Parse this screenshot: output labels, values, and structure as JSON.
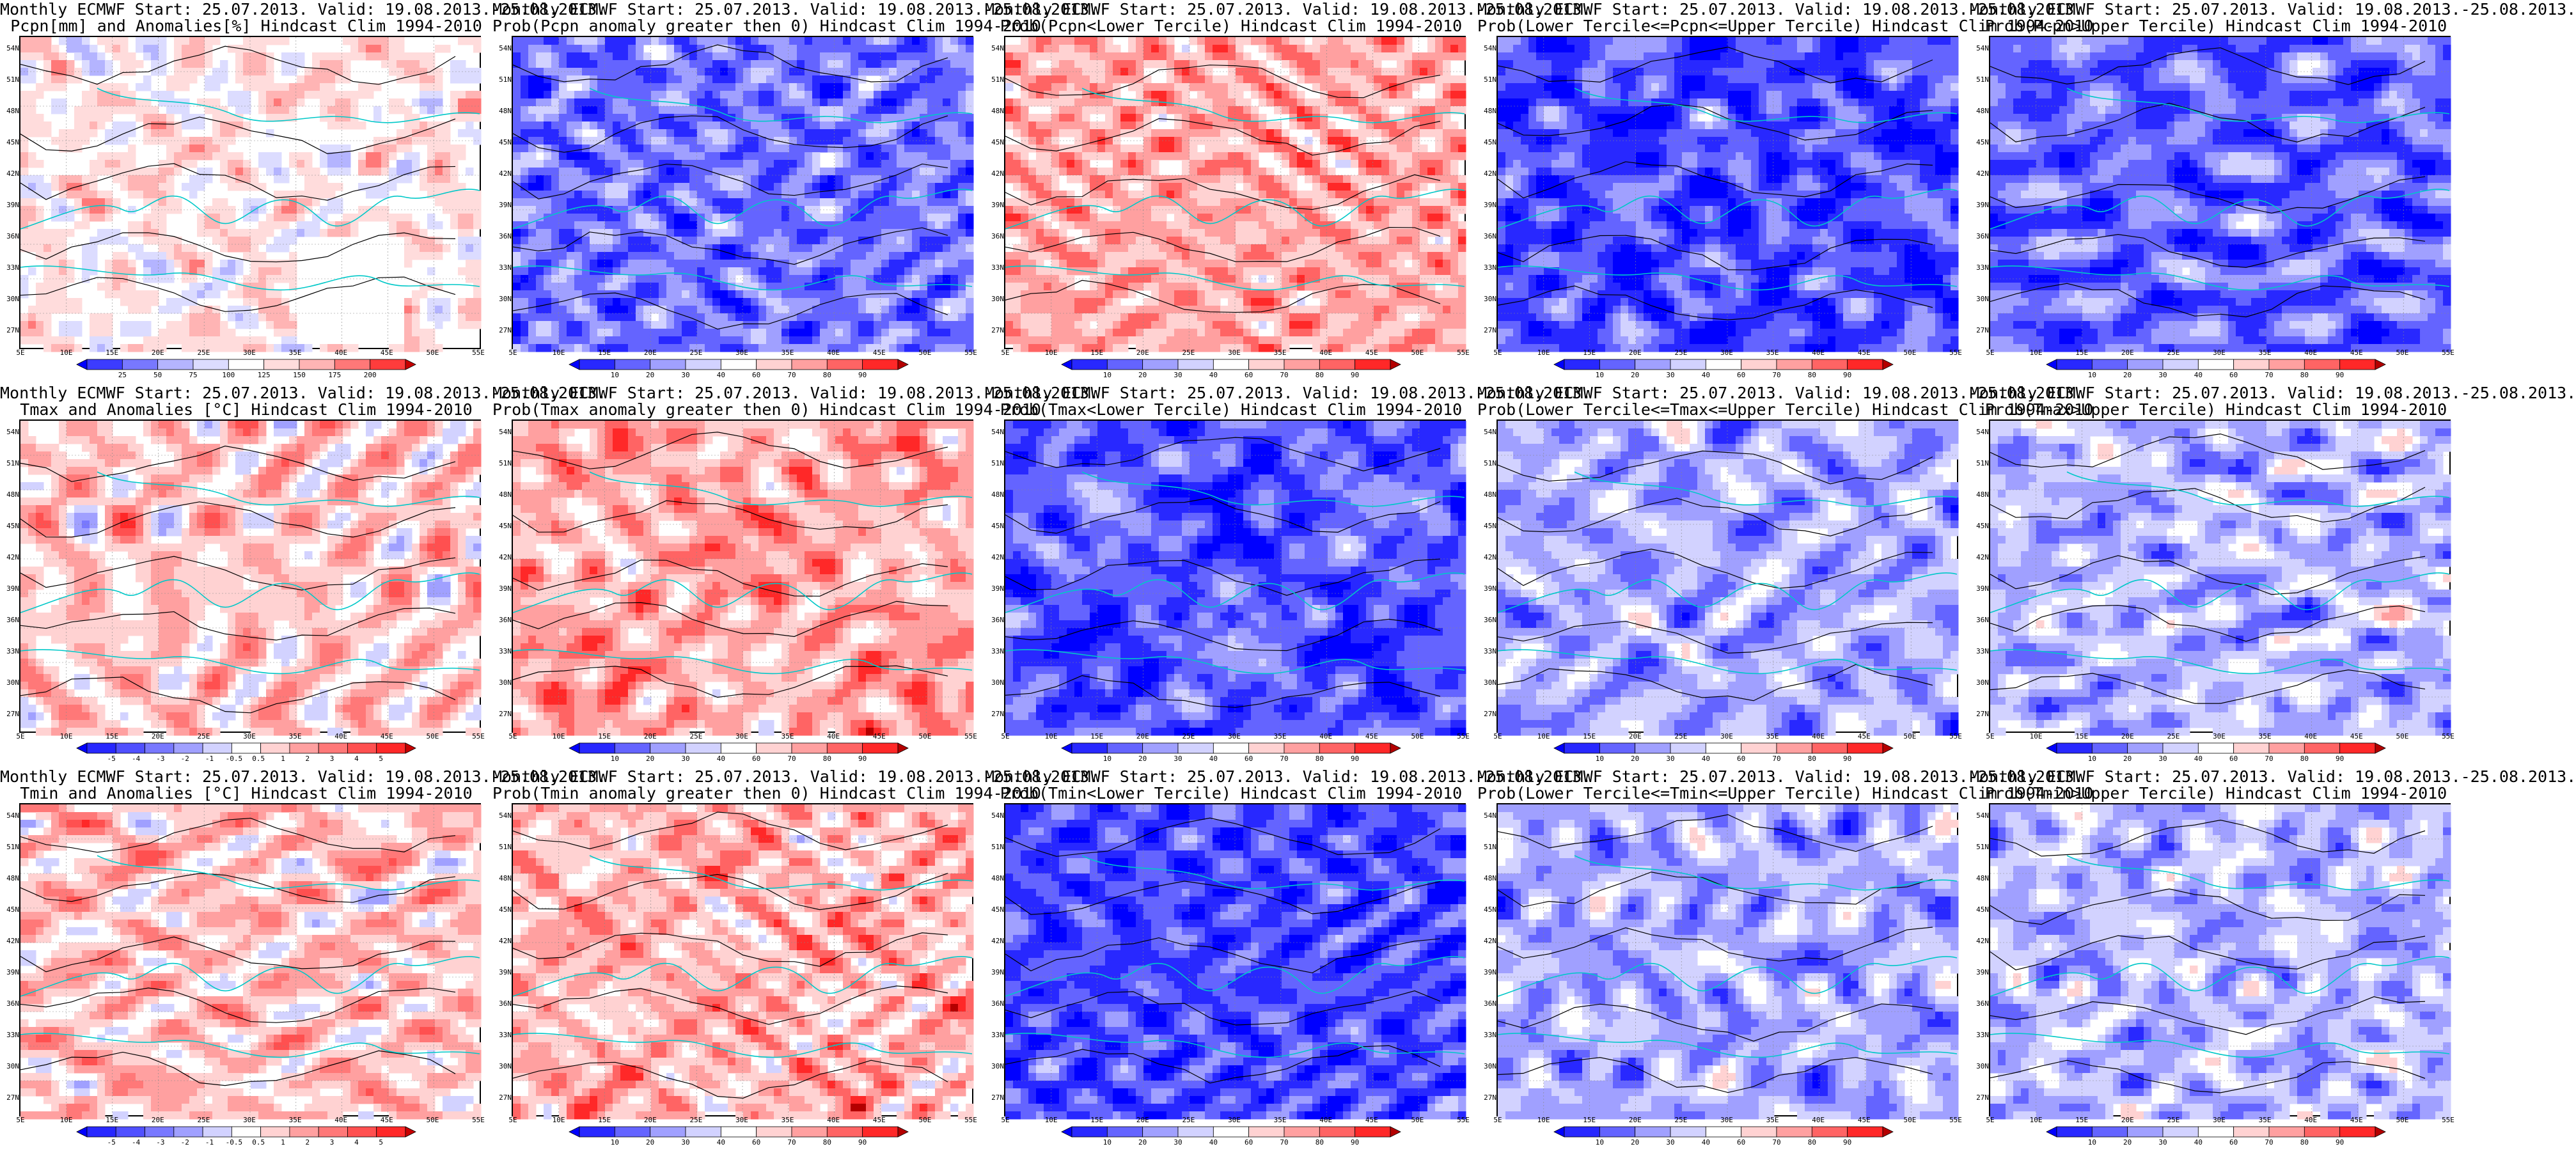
{
  "lat_labels": [
    "54N",
    "51N",
    "48N",
    "45N",
    "42N",
    "39N",
    "36N",
    "33N",
    "30N",
    "27N"
  ],
  "lon_labels": [
    "5E",
    "10E",
    "15E",
    "20E",
    "25E",
    "30E",
    "35E",
    "40E",
    "45E",
    "50E",
    "55E"
  ],
  "colorbars": {
    "precip": {
      "labels": [
        "25",
        "50",
        "75",
        "100",
        "125",
        "150",
        "175",
        "200"
      ],
      "colors": [
        "#0000ff",
        "#3c3cff",
        "#7878ff",
        "#b4b4ff",
        "#dcdcff",
        "#ffffff",
        "#ffdcdc",
        "#ffb4b4",
        "#ff7878",
        "#ff3c3c",
        "#c80000"
      ]
    },
    "prob": {
      "labels": [
        "10",
        "20",
        "30",
        "40",
        "60",
        "70",
        "80",
        "90"
      ],
      "colors": [
        "#0000ff",
        "#2828ff",
        "#6464ff",
        "#a0a0ff",
        "#d2d2ff",
        "#ffffff",
        "#ffd2d2",
        "#ffa0a0",
        "#ff6464",
        "#ff2828",
        "#b40000"
      ]
    },
    "temp": {
      "labels": [
        "-5",
        "-4",
        "-3",
        "-2",
        "-1",
        "-0.5",
        "0.5",
        "1",
        "2",
        "3",
        "4",
        "5"
      ],
      "colors": [
        "#0000ff",
        "#2828ff",
        "#5050ff",
        "#7878ff",
        "#a0a0ff",
        "#d2d2ff",
        "#ffffff",
        "#ffd2d2",
        "#ffa0a0",
        "#ff7878",
        "#ff5050",
        "#ff2828",
        "#c80000"
      ]
    }
  },
  "panels": [
    {
      "title1": "Monthly ECMWF Start: 25.07.2013. Valid: 19.08.2013.-25.08.2013.",
      "title2": "Pcpn[mm] and Anomalies[%] Hindcast Clim 1994-2010",
      "scale": "precip",
      "bias": 0.1,
      "seed": 11,
      "mask": true
    },
    {
      "title1": "Monthly ECMWF Start: 25.07.2013. Valid: 19.08.2013.-25.08.2013.",
      "title2": "Prob(Pcpn anomaly greater then 0) Hindcast Clim 1994-2010",
      "scale": "prob",
      "bias": -0.55,
      "seed": 23,
      "mask": false
    },
    {
      "title1": "Monthly ECMWF Start: 25.07.2013. Valid: 19.08.2013.-25.08.2013.",
      "title2": "Prob(Pcpn<Lower Tercile) Hindcast Clim 1994-2010",
      "scale": "prob",
      "bias": 0.35,
      "seed": 37,
      "mask": false
    },
    {
      "title1": "Monthly ECMWF Start: 25.07.2013. Valid: 19.08.2013.-25.08.2013.",
      "title2": "Prob(Lower Tercile<=Pcpn<=Upper Tercile) Hindcast Clim 1994-2010",
      "scale": "prob",
      "bias": -0.7,
      "seed": 41,
      "mask": false
    },
    {
      "title1": "Monthly ECMWF Start: 25.07.2013. Valid: 19.08.2013.-25.08.2013.",
      "title2": "Prob(Pcpn>Upper Tercile) Hindcast Clim 1994-2010",
      "scale": "prob",
      "bias": -0.6,
      "seed": 53,
      "mask": false
    },
    {
      "title1": "Monthly ECMWF Start: 25.07.2013. Valid: 19.08.2013.-25.08.2013.",
      "title2": "Tmax and Anomalies [°C] Hindcast Clim 1994-2010",
      "scale": "temp",
      "bias": 0.18,
      "seed": 61,
      "mask": false
    },
    {
      "title1": "Monthly ECMWF Start: 25.07.2013. Valid: 19.08.2013.-25.08.2013.",
      "title2": "Prob(Tmax anomaly greater then 0) Hindcast Clim 1994-2010",
      "scale": "prob",
      "bias": 0.35,
      "seed": 71,
      "mask": false
    },
    {
      "title1": "Monthly ECMWF Start: 25.07.2013. Valid: 19.08.2013.-25.08.2013.",
      "title2": "Prob(Tmax<Lower Tercile) Hindcast Clim 1994-2010",
      "scale": "prob",
      "bias": -0.65,
      "seed": 83,
      "mask": false
    },
    {
      "title1": "Monthly ECMWF Start: 25.07.2013. Valid: 19.08.2013.-25.08.2013.",
      "title2": "Prob(Lower Tercile<=Tmax<=Upper Tercile) Hindcast Clim 1994-2010",
      "scale": "prob",
      "bias": -0.35,
      "seed": 97,
      "mask": false
    },
    {
      "title1": "Monthly ECMWF Start: 25.07.2013. Valid: 19.08.2013.-25.08.2013.",
      "title2": "Prob(Tmax>Upper Tercile) Hindcast Clim 1994-2010",
      "scale": "prob",
      "bias": -0.3,
      "seed": 101,
      "mask": false
    },
    {
      "title1": "Monthly ECMWF Start: 25.07.2013. Valid: 19.08.2013.-25.08.2013.",
      "title2": "Tmin and Anomalies [°C] Hindcast Clim 1994-2010",
      "scale": "temp",
      "bias": 0.2,
      "seed": 113,
      "mask": false
    },
    {
      "title1": "Monthly ECMWF Start: 25.07.2013. Valid: 19.08.2013.-25.08.2013.",
      "title2": "Prob(Tmin anomaly greater then 0) Hindcast Clim 1994-2010",
      "scale": "prob",
      "bias": 0.3,
      "seed": 127,
      "mask": false
    },
    {
      "title1": "Monthly ECMWF Start: 25.07.2013. Valid: 19.08.2013.-25.08.2013.",
      "title2": "Prob(Tmin<Lower Tercile) Hindcast Clim 1994-2010",
      "scale": "prob",
      "bias": -0.7,
      "seed": 131,
      "mask": false
    },
    {
      "title1": "Monthly ECMWF Start: 25.07.2013. Valid: 19.08.2013.-25.08.2013.",
      "title2": "Prob(Lower Tercile<=Tmin<=Upper Tercile) Hindcast Clim 1994-2010",
      "scale": "prob",
      "bias": -0.35,
      "seed": 139,
      "mask": false
    },
    {
      "title1": "Monthly ECMWF Start: 25.07.2013. Valid: 19.08.2013.-25.08.2013.",
      "title2": "Prob(Tmin>Upper Tercile) Hindcast Clim 1994-2010",
      "scale": "prob",
      "bias": -0.3,
      "seed": 149,
      "mask": false
    }
  ]
}
